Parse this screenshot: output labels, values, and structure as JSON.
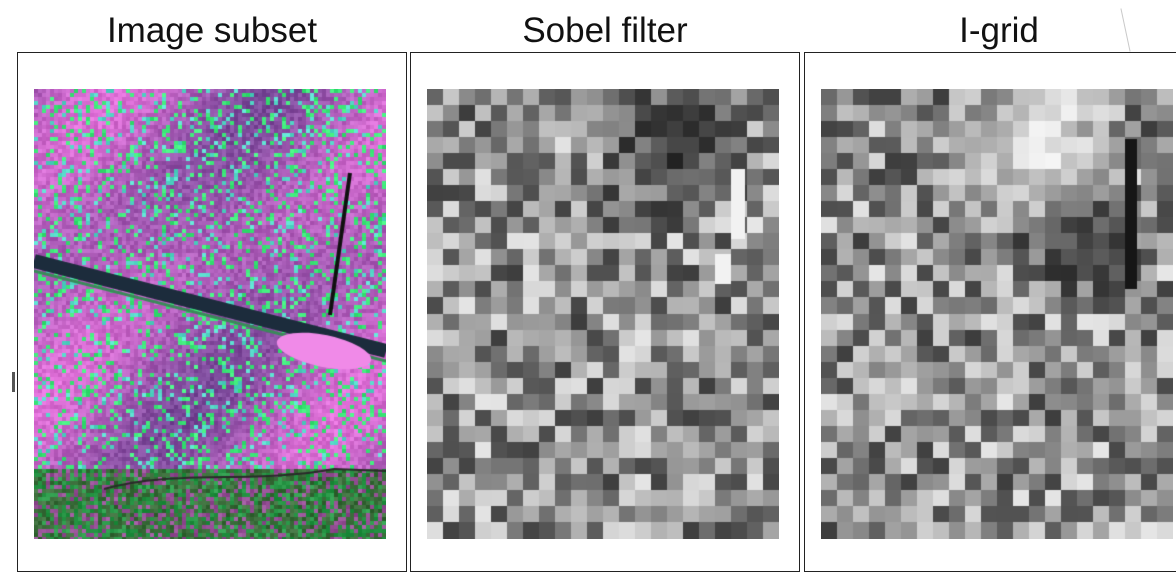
{
  "panels": [
    {
      "title": "Image subset",
      "kind": "false-color-satellite",
      "colors": {
        "magenta": "#e070d8",
        "purple": "#7a4a9a",
        "green": "#3ee87a",
        "cyan": "#55d8c8",
        "river": "#1c2c3c"
      }
    },
    {
      "title": "Sobel filter",
      "kind": "grayscale-grid"
    },
    {
      "title": "I-grid",
      "kind": "grayscale-grid"
    }
  ]
}
